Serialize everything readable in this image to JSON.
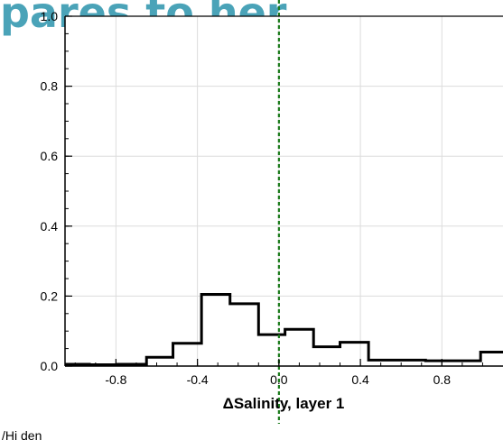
{
  "header": {
    "banner_text": "pares to her"
  },
  "footer": {
    "cutoff_text": "/Hi den"
  },
  "chart_data": {
    "type": "step",
    "title": "",
    "xlabel": "ΔSalinity, layer 1",
    "ylabel": "",
    "xlim": [
      -1.05,
      1.1
    ],
    "ylim": [
      0,
      1.0
    ],
    "grid": true,
    "x_ticks": [
      -0.8,
      -0.4,
      0.0,
      0.4,
      0.8
    ],
    "x_tick_labels": [
      "-0.8",
      "-0.4",
      "0.0",
      "0.4",
      "0.8"
    ],
    "y_ticks": [
      0.0,
      0.2,
      0.4,
      0.6,
      0.8,
      1.0
    ],
    "y_tick_labels": [
      "0.0",
      "0.2",
      "0.4",
      "0.6",
      "0.8",
      "1.0"
    ],
    "bin_edges": [
      -1.05,
      -0.93,
      -0.79,
      -0.65,
      -0.52,
      -0.38,
      -0.24,
      -0.1,
      0.03,
      0.17,
      0.3,
      0.44,
      0.58,
      0.72,
      0.85,
      0.99,
      1.1
    ],
    "values": [
      0.005,
      0.004,
      0.005,
      0.025,
      0.065,
      0.205,
      0.178,
      0.09,
      0.105,
      0.055,
      0.068,
      0.017,
      0.017,
      0.015,
      0.015,
      0.04
    ],
    "reference_line": {
      "x": 0.0,
      "color": "#1a7a1a",
      "style": "dashed"
    },
    "colors": {
      "histogram": "#000000",
      "grid": "#dcdcdc"
    }
  }
}
